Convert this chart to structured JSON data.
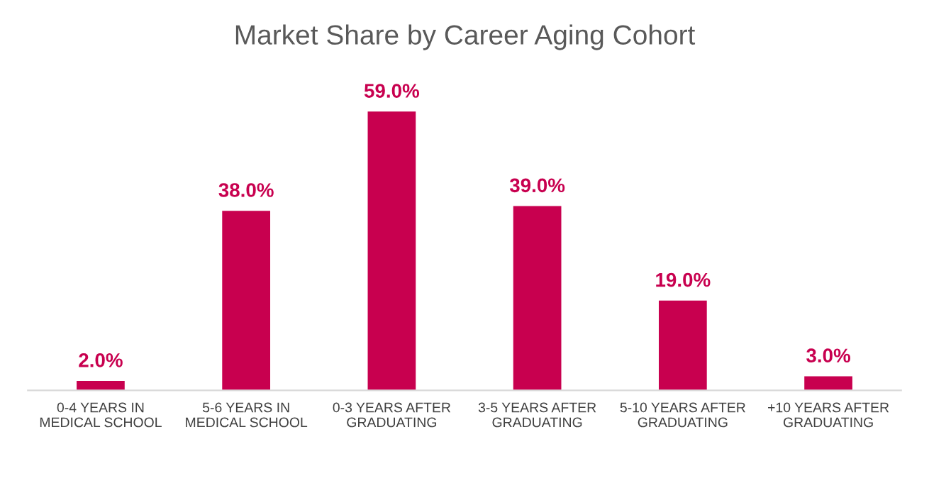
{
  "chart_data": {
    "type": "bar",
    "title": "Market Share by Career Aging Cohort",
    "categories": [
      "0-4 YEARS IN\nMEDICAL SCHOOL",
      "5-6 YEARS IN\nMEDICAL SCHOOL",
      "0-3 YEARS AFTER\nGRADUATING",
      "3-5 YEARS AFTER\nGRADUATING",
      "5-10 YEARS AFTER\nGRADUATING",
      "+10 YEARS AFTER\nGRADUATING"
    ],
    "values": [
      2,
      38,
      59,
      39,
      19,
      3
    ],
    "value_labels": [
      "2.0%",
      "38.0%",
      "59.0%",
      "39.0%",
      "19.0%",
      "3.0%"
    ],
    "color": "#c8004f",
    "tick_labels": "x"
  }
}
